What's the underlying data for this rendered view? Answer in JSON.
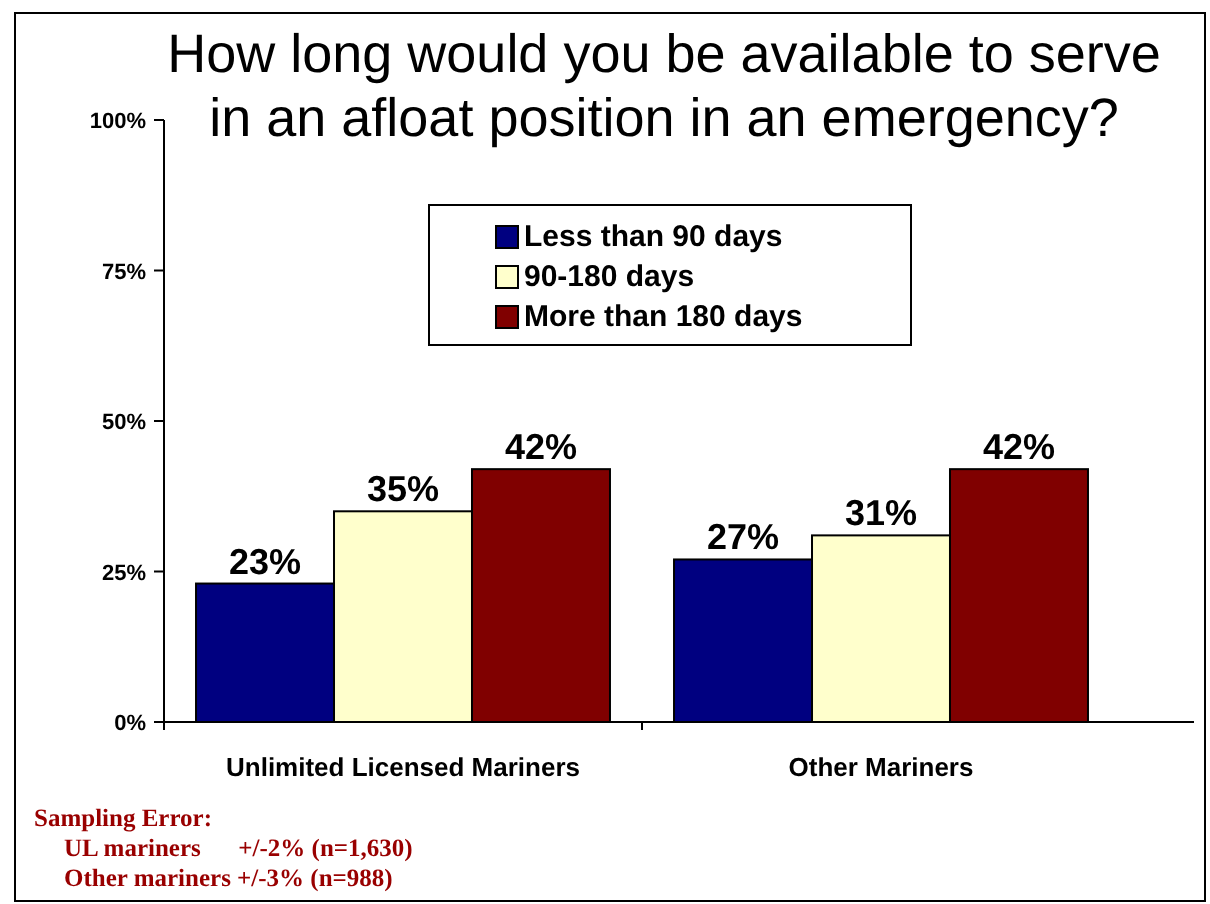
{
  "chart_data": {
    "type": "bar",
    "title": "How long would you be available to serve\nin an afloat position in an emergency?",
    "categories": [
      "Unlimited Licensed Mariners",
      "Other Mariners"
    ],
    "series": [
      {
        "name": "Less than 90 days",
        "color": "#000080",
        "values": [
          23,
          27
        ],
        "value_labels": [
          "23%",
          "27%"
        ]
      },
      {
        "name": "90-180 days",
        "color": "#ffffcc",
        "values": [
          35,
          31
        ],
        "value_labels": [
          "35%",
          "31%"
        ]
      },
      {
        "name": "More than 180 days",
        "color": "#800000",
        "values": [
          42,
          42
        ],
        "value_labels": [
          "42%",
          "42%"
        ]
      }
    ],
    "ylim": [
      0,
      100
    ],
    "yticks": [
      {
        "value": 0,
        "label": "0%"
      },
      {
        "value": 25,
        "label": "25%"
      },
      {
        "value": 50,
        "label": "50%"
      },
      {
        "value": 75,
        "label": "75%"
      },
      {
        "value": 100,
        "label": "100%"
      }
    ],
    "grid": false,
    "legend": "top",
    "annotations": [
      "Sampling Error:",
      "UL mariners      +/-2% (n=1,630)",
      "Other mariners +/-3% (n=988)"
    ]
  }
}
